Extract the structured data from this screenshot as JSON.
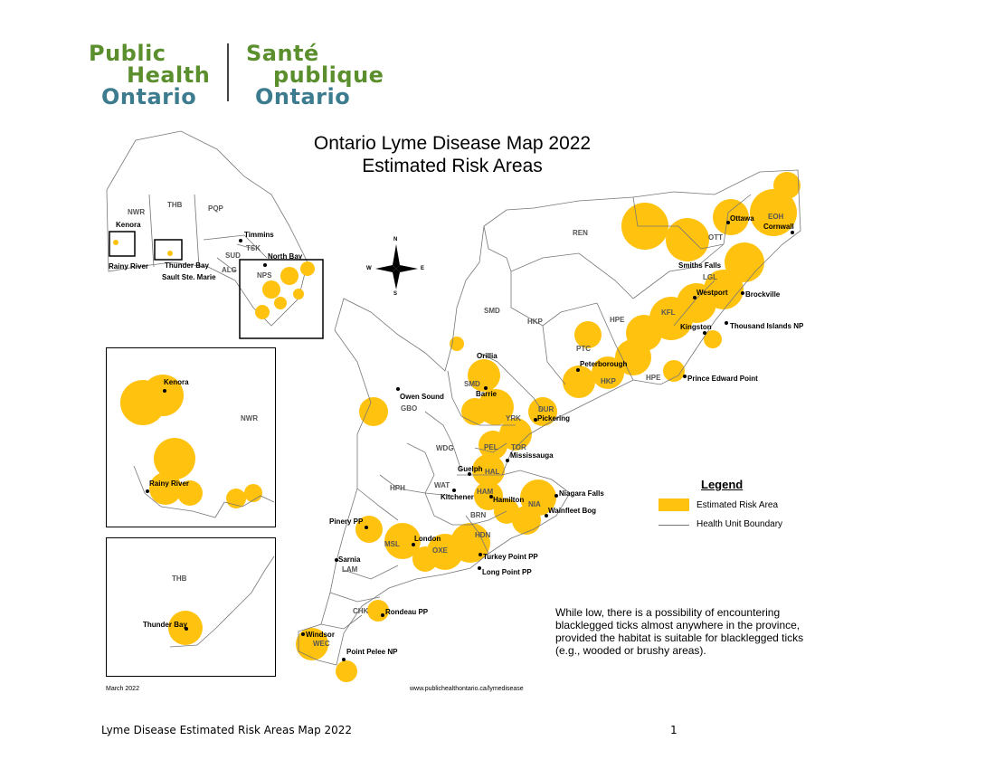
{
  "logo": {
    "en_line1": "Public",
    "en_line2": "Health",
    "en_line3": "Ontario",
    "fr_line1": "Santé",
    "fr_line2": "publique",
    "fr_line3": "Ontario"
  },
  "map": {
    "title_line1": "Ontario Lyme Disease Map 2022",
    "title_line2": "Estimated Risk Areas",
    "compass": {
      "n": "N",
      "s": "S",
      "e": "E",
      "w": "W"
    },
    "risk_color": "#ffc20e",
    "boundary_color": "#777777",
    "places": {
      "kenora": "Kenora",
      "rainy_river": "Rainy River",
      "thunder_bay": "Thunder Bay",
      "sault": "Sault Ste. Marie",
      "timmins": "Timmins",
      "north_bay": "North Bay",
      "ottawa": "Ottawa",
      "cornwall": "Cornwall",
      "smiths_falls": "Smiths Falls",
      "westport": "Westport",
      "brockville": "Brockville",
      "kingston": "Kingston",
      "thousand_islands": "Thousand Islands NP",
      "prince_edward": "Prince Edward Point",
      "peterborough": "Peterborough",
      "orillia": "Orillia",
      "barrie": "Barrie",
      "owen_sound": "Owen Sound",
      "pickering": "Pickering",
      "mississauga": "Mississauga",
      "guelph": "Guelph",
      "kitchener": "Kitchener",
      "hamilton": "Hamilton",
      "niagara_falls": "Niagara Falls",
      "wainfleet": "Wainfleet Bog",
      "pinery": "Pinery PP",
      "london": "London",
      "sarnia": "Sarnia",
      "turkey_point": "Turkey Point PP",
      "long_point": "Long Point PP",
      "rondeau": "Rondeau PP",
      "windsor": "Windsor",
      "point_pelee": "Point Pelee NP"
    },
    "health_units": {
      "nwr": "NWR",
      "thb": "THB",
      "pqp": "PQP",
      "tsk": "TSK",
      "sud": "SUD",
      "alg": "ALG",
      "nps": "NPS",
      "eoh": "EOH",
      "ott": "OTT",
      "ren": "REN",
      "lgl": "LGL",
      "kfl": "KFL",
      "hpe": "HPE",
      "hpe2": "HPE",
      "hkp": "HKP",
      "hkp2": "HKP",
      "ptc": "PTC",
      "smd": "SMD",
      "smd2": "SMD",
      "gbo": "GBO",
      "yrk": "YRK",
      "dur": "DUR",
      "pel": "PEL",
      "tor": "TOR",
      "hal": "HAL",
      "wdg": "WDG",
      "wat": "WAT",
      "ham": "HAM",
      "nia": "NIA",
      "hph": "HPH",
      "brn": "BRN",
      "hdn": "HDN",
      "msl": "MSL",
      "oxe": "OXE",
      "lam": "LAM",
      "chk": "CHK",
      "wec": "WEC"
    },
    "inset_nw": {
      "kenora": "Kenora",
      "rainy_river": "Rainy River",
      "nwr": "NWR"
    },
    "inset_tb": {
      "thb": "THB",
      "thunder_bay": "Thunder Bay"
    }
  },
  "legend": {
    "title": "Legend",
    "risk_label": "Estimated Risk Area",
    "boundary_label": "Health Unit Boundary"
  },
  "note": "While low, there is a possibility of encountering blacklegged ticks almost anywhere in the province, provided the habitat is suitable for blacklegged ticks (e.g., wooded or brushy areas).",
  "date": "March 2022",
  "url": "www.publichealthontario.ca/lymedisease",
  "footer": {
    "title": "Lyme Disease Estimated Risk Areas Map 2022",
    "page": "1"
  }
}
